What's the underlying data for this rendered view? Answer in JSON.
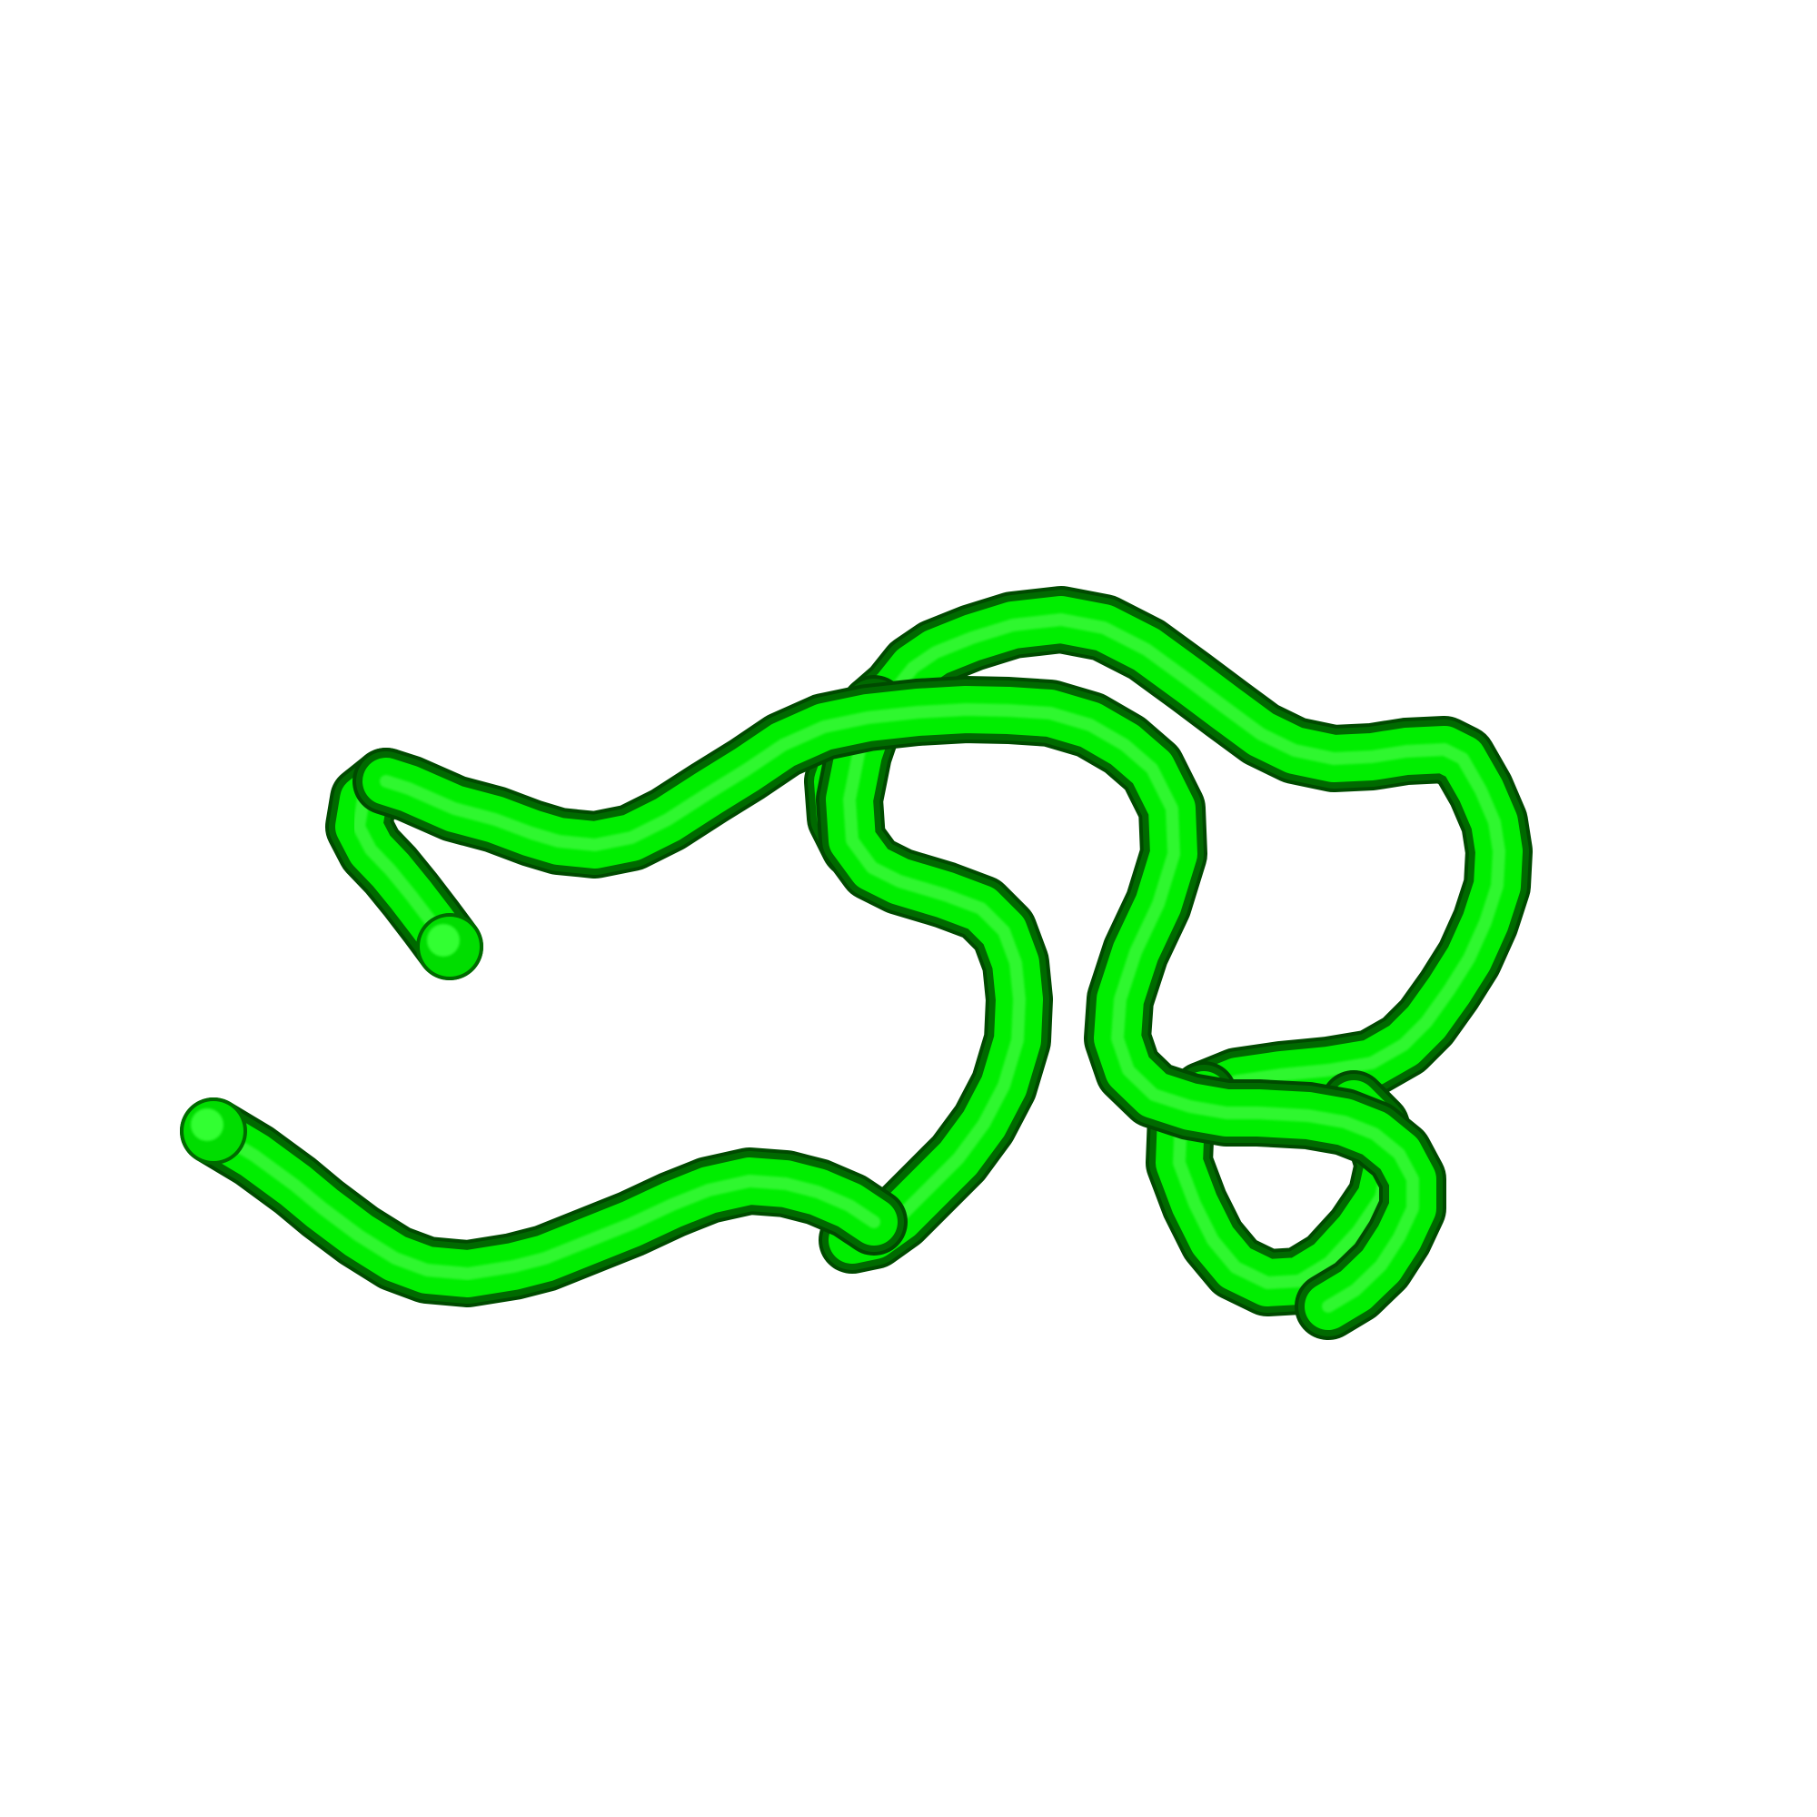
{
  "image": {
    "subject": "protein-backbone-cartoon",
    "background_color": "#ffffff",
    "colors": {
      "tube_highlight": "#55ff55",
      "tube_main": "#00ee00",
      "tube_mid": "#00cc00",
      "tube_shadow": "#006a00",
      "tube_edge": "#004a00"
    }
  }
}
